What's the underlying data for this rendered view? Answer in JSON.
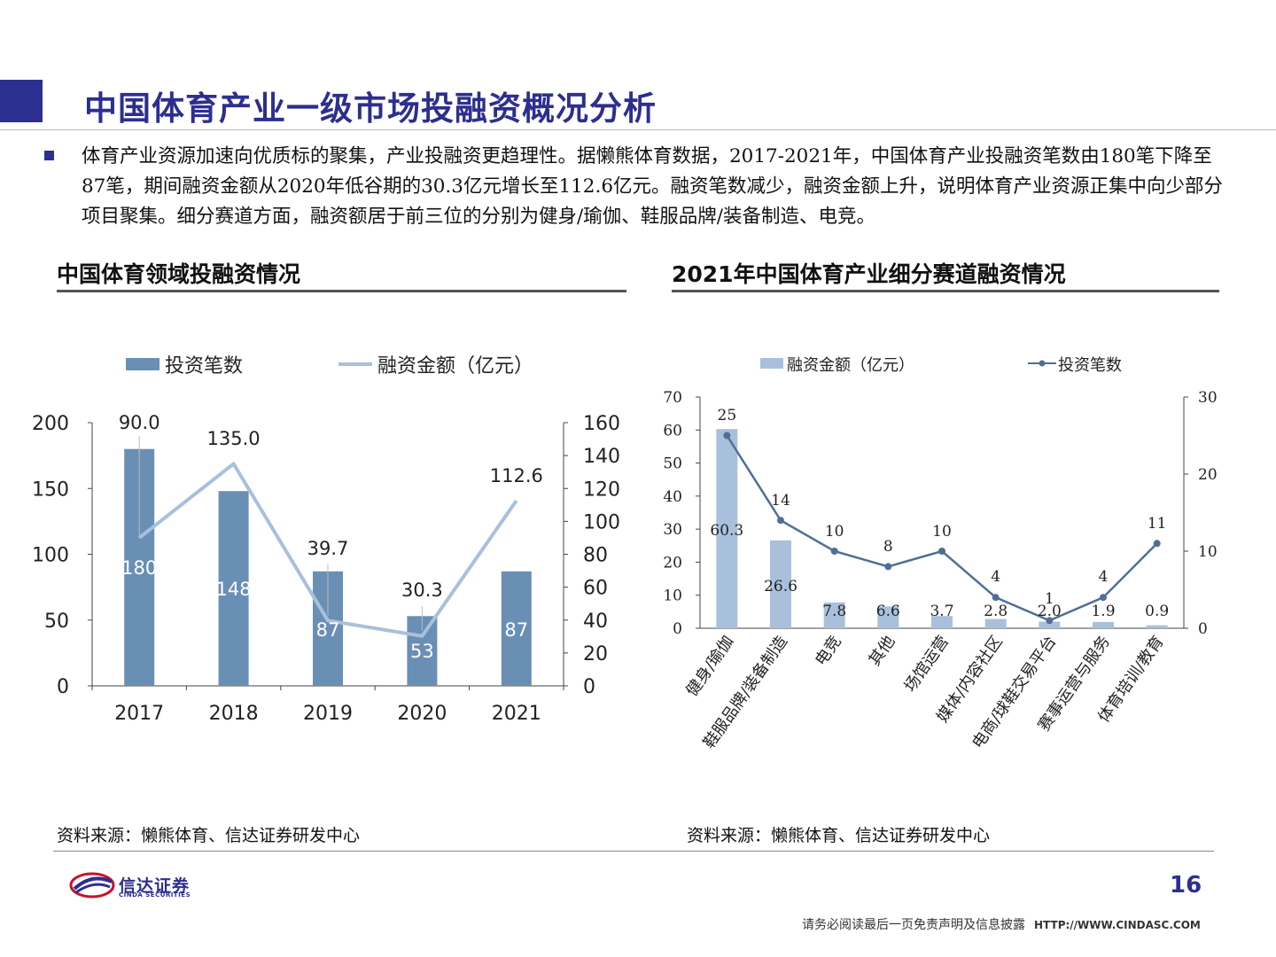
{
  "header": {
    "title": "中国体育产业一级市场投融资概况分析"
  },
  "bullet": {
    "text": "体育产业资源加速向优质标的聚集，产业投融资更趋理性。据懒熊体育数据，2017-2021年，中国体育产业投融资笔数由180笔下降至87笔，期间融资金额从2020年低谷期的30.3亿元增长至112.6亿元。融资笔数减少，融资金额上升，说明体育产业资源正集中向少部分项目聚集。细分赛道方面，融资额居于前三位的分别为健身/瑜伽、鞋服品牌/装备制造、电竞。"
  },
  "left_section": {
    "title": "中国体育领域投融资情况",
    "source": "资料来源：懒熊体育、信达证券研发中心"
  },
  "right_section": {
    "title": "2021年中国体育产业细分赛道融资情况",
    "source": "资料来源：懒熊体育、信达证券研发中心"
  },
  "chart_data": [
    {
      "type": "bar+line",
      "categories": [
        "2017",
        "2018",
        "2019",
        "2020",
        "2021"
      ],
      "series": [
        {
          "name": "投资笔数",
          "kind": "bar",
          "axis": "left",
          "values": [
            180,
            148,
            87,
            53,
            87
          ],
          "labels": [
            "180",
            "148",
            "87",
            "53",
            "87"
          ],
          "color": "#6a8fb5"
        },
        {
          "name": "融资金额（亿元）",
          "kind": "line",
          "axis": "right",
          "values": [
            90.0,
            135.0,
            39.7,
            30.3,
            112.6
          ],
          "labels": [
            "90.0",
            "135.0",
            "39.7",
            "30.3",
            "112.6"
          ],
          "color": "#a8c0dc"
        }
      ],
      "y_left": {
        "min": 0,
        "max": 200,
        "ticks": [
          "0",
          "50",
          "100",
          "150",
          "200"
        ]
      },
      "y_right": {
        "min": 0,
        "max": 160,
        "ticks": [
          "0",
          "20",
          "40",
          "60",
          "80",
          "100",
          "120",
          "140",
          "160"
        ]
      },
      "legend": "top"
    },
    {
      "type": "bar+line",
      "categories": [
        "健身/瑜伽",
        "鞋服品牌/装备制造",
        "电竞",
        "其他",
        "场馆运营",
        "媒体/内容社区",
        "电商/球鞋交易平台",
        "赛事运营与服务",
        "体育培训/教育"
      ],
      "series": [
        {
          "name": "融资金额（亿元）",
          "kind": "bar",
          "axis": "left",
          "values": [
            60.3,
            26.6,
            7.8,
            6.6,
            3.7,
            2.8,
            2.0,
            1.9,
            0.9
          ],
          "labels": [
            "60.3",
            "26.6",
            "7.8",
            "6.6",
            "3.7",
            "2.8",
            "2.0",
            "1.9",
            "0.9"
          ],
          "color": "#a8c0dc"
        },
        {
          "name": "投资笔数",
          "kind": "line",
          "axis": "right",
          "values": [
            25,
            14,
            10,
            8,
            10,
            4,
            1,
            4,
            11
          ],
          "labels": [
            "25",
            "14",
            "10",
            "8",
            "10",
            "4",
            "1",
            "4",
            "11"
          ],
          "color": "#4f6f98"
        }
      ],
      "y_left": {
        "min": 0,
        "max": 70,
        "ticks": [
          "0",
          "10",
          "20",
          "30",
          "40",
          "50",
          "60",
          "70"
        ]
      },
      "y_right": {
        "min": 0,
        "max": 30,
        "ticks": [
          "0",
          "10",
          "20",
          "30"
        ]
      },
      "legend": "top"
    }
  ],
  "footer": {
    "logo_name": "信达证券",
    "logo_sub": "CINDA SECURITIES",
    "page_number": "16",
    "disclaimer": "请务必阅读最后一页免责声明及信息披露",
    "url": "HTTP://WWW.CINDASC.COM"
  }
}
